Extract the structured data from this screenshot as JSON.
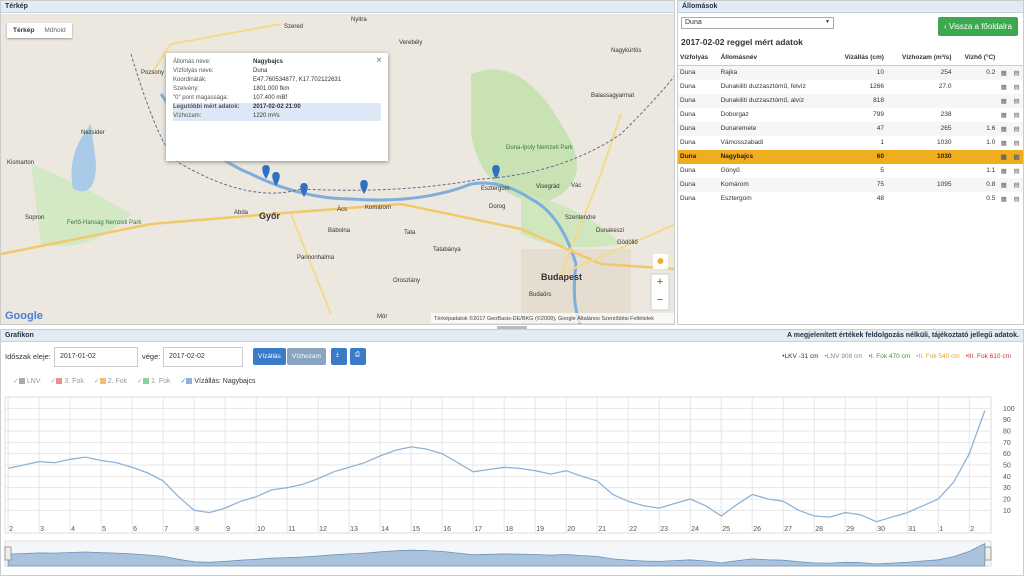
{
  "map_panel": {
    "title": "Térkép",
    "map_types": [
      "Térkép",
      "Műhold"
    ],
    "popup": {
      "rows": [
        [
          "Állomás neve:",
          "Nagybajcs"
        ],
        [
          "Vízfolyás neve:",
          "Duna"
        ],
        [
          "Koordináták:",
          "E47.760534877, K17.702122631"
        ],
        [
          "Szelvény:",
          "1801.000 fkm"
        ],
        [
          "\"0\" pont magassága:",
          "107.400 mBf"
        ],
        [
          "Legutóbbi mért adatok:",
          "2017-02-02 21:00"
        ],
        [
          "Vízhozam:",
          "1220 m³/s"
        ]
      ],
      "close": "×"
    },
    "places": [
      "Pozsony",
      "Szered",
      "Nyitra",
      "Verebély",
      "Nagykürtös",
      "Balassagyarmat",
      "Kismarton",
      "Nezsider",
      "Sopron",
      "Győr",
      "Abda",
      "Ács",
      "Bábolna",
      "Komárom",
      "Tata",
      "Tatabánya",
      "Pannonhalma",
      "Oroszlány",
      "Mór",
      "Esztergom",
      "Dorog",
      "Visegrád",
      "Vác",
      "Szentendre",
      "Dunakeszi",
      "Gödöllő",
      "Budapest",
      "Budaörs",
      "Duna-Ipoly Nemzeti Park",
      "Fertő-Hanság Nemzeti Park"
    ],
    "zoom": [
      "+",
      "−"
    ],
    "logo": "Google",
    "attribution": "Térképadatok ©2017 GeoBasis-DE/BKG (©2009), Google   Általános Szerződési Feltételek"
  },
  "stations_panel": {
    "title": "Állomások",
    "river_select": "Duna",
    "back_button": "Vissza a főoldalra",
    "heading": "2017-02-02 reggel mért adatok",
    "table": {
      "headers": [
        "Vízfolyás",
        "Állomásnév",
        "Vízállás (cm)",
        "Vízhozam (m³/s)",
        "Vízhő (°C)"
      ],
      "rows": [
        [
          "Duna",
          "Rajka",
          "10",
          "254",
          "0.2"
        ],
        [
          "Duna",
          "Dunakiliti duzzasztómű, felvíz",
          "1266",
          "27.0",
          null
        ],
        [
          "Duna",
          "Dunakiliti duzzasztómű, alvíz",
          "818",
          null,
          null
        ],
        [
          "Duna",
          "Doborgaz",
          "799",
          "238",
          null
        ],
        [
          "Duna",
          "Dunaremete",
          "47",
          "265",
          "1.6"
        ],
        [
          "Duna",
          "Vámosszabadi",
          "1",
          "1030",
          "1.0"
        ],
        [
          "Duna",
          "Nagybajcs",
          "60",
          "1030",
          null
        ],
        [
          "Duna",
          "Gönyű",
          "5",
          null,
          "1.1"
        ],
        [
          "Duna",
          "Komárom",
          "75",
          "1095",
          "0.8"
        ],
        [
          "Duna",
          "Esztergom",
          "48",
          null,
          "0.5"
        ]
      ],
      "selected_row": 6
    }
  },
  "graph_panel": {
    "title": "Grafikon",
    "note": "A megjelenített értékek feldolgozás nélküli, tájékoztató jellegű adatok.",
    "start_label": "Időszak eleje:",
    "start": "2017-01-02",
    "end_label": "vége:",
    "end": "2017-02-02",
    "modes": [
      "Vízállás",
      "Vízhozam"
    ],
    "levels": [
      {
        "label": "LKV -31 cm",
        "color": "#333333"
      },
      {
        "label": "LNV 908 cm",
        "color": "#888888"
      },
      {
        "label": "I. Fok 470 cm",
        "color": "#3a9a3a"
      },
      {
        "label": "II. Fok 540 cm",
        "color": "#e8a020"
      },
      {
        "label": "III. Fok 610 cm",
        "color": "#d03030"
      }
    ],
    "toggles": [
      {
        "label": "LNV",
        "color": "#aaaaaa"
      },
      {
        "label": "3. Fok",
        "color": "#e89090"
      },
      {
        "label": "2. Fok",
        "color": "#f0c070"
      },
      {
        "label": "1. Fok",
        "color": "#90d090"
      }
    ]
  },
  "chart_data": {
    "type": "line",
    "x": [
      0,
      0.5,
      1,
      1.5,
      2,
      2.5,
      3,
      3.5,
      4,
      4.5,
      5,
      5.5,
      6,
      6.5,
      7,
      7.5,
      8,
      8.5,
      9,
      9.5,
      10,
      10.5,
      11,
      11.5,
      12,
      12.5,
      13,
      13.5,
      14,
      14.5,
      15,
      15.5,
      16,
      16.5,
      17,
      17.5,
      18,
      18.5,
      19,
      19.5,
      20,
      20.5,
      21,
      21.5,
      22,
      22.5,
      23,
      23.5,
      24,
      24.5,
      25,
      25.5,
      26,
      26.5,
      27,
      27.5,
      28,
      28.5,
      29,
      29.5,
      30,
      30.5,
      31,
      31.5
    ],
    "series": [
      {
        "name": "Vízállás: Nagybajcs",
        "color": "#8fb3d6",
        "values": [
          47,
          50,
          53,
          52,
          55,
          57,
          54,
          52,
          48,
          43,
          36,
          22,
          10,
          8,
          12,
          18,
          22,
          28,
          30,
          33,
          38,
          44,
          48,
          52,
          58,
          63,
          66,
          64,
          60,
          52,
          44,
          46,
          48,
          47,
          45,
          42,
          45,
          40,
          36,
          24,
          18,
          14,
          12,
          16,
          20,
          14,
          5,
          15,
          24,
          20,
          18,
          10,
          5,
          4,
          8,
          6,
          0,
          4,
          8,
          14,
          20,
          35,
          60,
          98
        ]
      }
    ],
    "xlim": [
      -0.1,
      31.7
    ],
    "xticks": [
      {
        "value": 0,
        "label": "2"
      },
      {
        "value": 1,
        "label": "3"
      },
      {
        "value": 2,
        "label": "4"
      },
      {
        "value": 3,
        "label": "5"
      },
      {
        "value": 4,
        "label": "6"
      },
      {
        "value": 5,
        "label": "7"
      },
      {
        "value": 6,
        "label": "8"
      },
      {
        "value": 7,
        "label": "9"
      },
      {
        "value": 8,
        "label": "10"
      },
      {
        "value": 9,
        "label": "11"
      },
      {
        "value": 10,
        "label": "12"
      },
      {
        "value": 11,
        "label": "13"
      },
      {
        "value": 12,
        "label": "14"
      },
      {
        "value": 13,
        "label": "15"
      },
      {
        "value": 14,
        "label": "16"
      },
      {
        "value": 15,
        "label": "17"
      },
      {
        "value": 16,
        "label": "18"
      },
      {
        "value": 17,
        "label": "19"
      },
      {
        "value": 18,
        "label": "20"
      },
      {
        "value": 19,
        "label": "21"
      },
      {
        "value": 20,
        "label": "22"
      },
      {
        "value": 21,
        "label": "23"
      },
      {
        "value": 22,
        "label": "24"
      },
      {
        "value": 23,
        "label": "25"
      },
      {
        "value": 24,
        "label": "26"
      },
      {
        "value": 25,
        "label": "27"
      },
      {
        "value": 26,
        "label": "28"
      },
      {
        "value": 27,
        "label": "29"
      },
      {
        "value": 28,
        "label": "30"
      },
      {
        "value": 29,
        "label": "31"
      },
      {
        "value": 30,
        "label": "1"
      },
      {
        "value": 31,
        "label": "2"
      }
    ],
    "ylim": [
      -10,
      110
    ],
    "yticks": [
      10,
      20,
      30,
      40,
      50,
      60,
      70,
      80,
      90,
      100
    ],
    "grid": true
  }
}
